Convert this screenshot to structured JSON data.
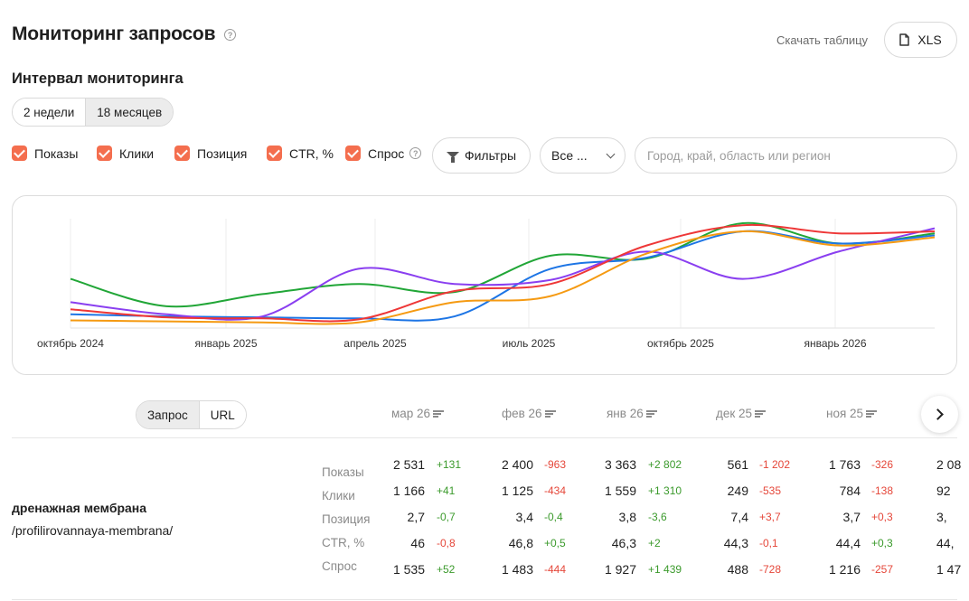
{
  "page": {
    "title": "Мониторинг запросов",
    "download_label": "Скачать таблицу",
    "xls_label": "XLS"
  },
  "interval": {
    "title": "Интервал мониторинга",
    "options": [
      {
        "label": "2 недели",
        "active": false
      },
      {
        "label": "18 месяцев",
        "active": true
      }
    ]
  },
  "metrics_toggle": [
    {
      "label": "Показы",
      "checked": true
    },
    {
      "label": "Клики",
      "checked": true
    },
    {
      "label": "Позиция",
      "checked": true
    },
    {
      "label": "CTR, %",
      "checked": true
    },
    {
      "label": "Спрос",
      "checked": true,
      "help": true
    }
  ],
  "filters_label": "Фильтры",
  "device_select": "Все ...",
  "region_placeholder": "Город, край, область или регион",
  "chart_data": {
    "type": "line",
    "x_ticks": [
      "октябрь 2024",
      "январь 2025",
      "апрель 2025",
      "июль 2025",
      "октябрь 2025",
      "январь 2026"
    ],
    "x_range": [
      "2024-10",
      "2026-03"
    ],
    "grid": "vertical",
    "legend": "none",
    "series": [
      {
        "color": "#21a637",
        "values": [
          0.45,
          0.18,
          0.3,
          0.4,
          0.32,
          0.68,
          0.65,
          1.0,
          0.8,
          0.9
        ]
      },
      {
        "color": "#1d75e5",
        "values": [
          0.1,
          0.08,
          0.07,
          0.06,
          0.08,
          0.55,
          0.66,
          0.92,
          0.8,
          0.88
        ]
      },
      {
        "color": "#8a3ff0",
        "values": [
          0.22,
          0.1,
          0.08,
          0.55,
          0.4,
          0.44,
          0.72,
          0.45,
          0.72,
          0.95
        ]
      },
      {
        "color": "#ee3737",
        "values": [
          0.15,
          0.07,
          0.06,
          0.05,
          0.33,
          0.4,
          0.78,
          0.98,
          0.9,
          0.92
        ]
      },
      {
        "color": "#f59a12",
        "values": [
          0.04,
          0.03,
          0.02,
          0.02,
          0.22,
          0.28,
          0.7,
          0.92,
          0.78,
          0.86
        ]
      }
    ]
  },
  "table": {
    "mode": [
      {
        "label": "Запрос",
        "active": true
      },
      {
        "label": "URL",
        "active": false
      }
    ],
    "columns": [
      "мар 26",
      "фев 26",
      "янв 26",
      "дек 25",
      "ноя 25"
    ],
    "query": {
      "name": "дренажная мембрана",
      "url": "/profilirovannaya-membrana/"
    },
    "metrics": [
      "Показы",
      "Клики",
      "Позиция",
      "CTR, %",
      "Спрос"
    ],
    "cells": [
      [
        [
          "2 531",
          "+131"
        ],
        [
          "2 400",
          "-963"
        ],
        [
          "3 363",
          "+2 802"
        ],
        [
          "561",
          "-1 202"
        ],
        [
          "1 763",
          "-326"
        ],
        [
          "2 08",
          ""
        ]
      ],
      [
        [
          "1 166",
          "+41"
        ],
        [
          "1 125",
          "-434"
        ],
        [
          "1 559",
          "+1 310"
        ],
        [
          "249",
          "-535"
        ],
        [
          "784",
          "-138"
        ],
        [
          "92",
          ""
        ]
      ],
      [
        [
          "2,7",
          "-0,7"
        ],
        [
          "3,4",
          "-0,4"
        ],
        [
          "3,8",
          "-3,6"
        ],
        [
          "7,4",
          "+3,7"
        ],
        [
          "3,7",
          "+0,3"
        ],
        [
          "3,",
          ""
        ]
      ],
      [
        [
          "46",
          "-0,8"
        ],
        [
          "46,8",
          "+0,5"
        ],
        [
          "46,3",
          "+2"
        ],
        [
          "44,3",
          "-0,1"
        ],
        [
          "44,4",
          "+0,3"
        ],
        [
          "44,",
          ""
        ]
      ],
      [
        [
          "1 535",
          "+52"
        ],
        [
          "1 483",
          "-444"
        ],
        [
          "1 927",
          "+1 439"
        ],
        [
          "488",
          "-728"
        ],
        [
          "1 216",
          "-257"
        ],
        [
          "1 47",
          ""
        ]
      ]
    ],
    "delta_colors": [
      [
        "pos",
        "neg",
        "pos",
        "neg",
        "neg"
      ],
      [
        "pos",
        "neg",
        "pos",
        "neg",
        "neg"
      ],
      [
        "pos",
        "pos",
        "pos",
        "neg",
        "neg"
      ],
      [
        "neg",
        "pos",
        "pos",
        "neg",
        "pos"
      ],
      [
        "pos",
        "neg",
        "pos",
        "neg",
        "neg"
      ]
    ]
  }
}
